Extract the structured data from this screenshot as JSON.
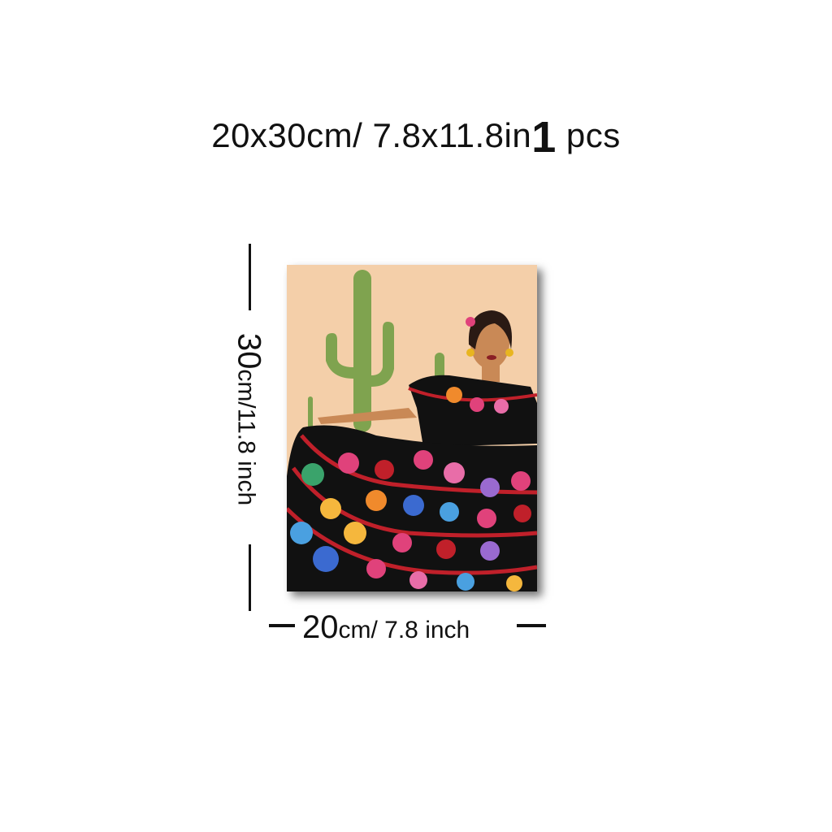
{
  "heading": {
    "size_text": "20x30cm/ 7.8x11.8in",
    "qty_number": "1",
    "qty_unit": "pcs"
  },
  "height_label": {
    "value": "30",
    "unit": "cm/11.8 inch"
  },
  "width_label": {
    "value": "20",
    "unit": "cm/ 7.8 inch"
  },
  "artwork": {
    "subject": "woman-in-floral-dress-with-cactus",
    "colors": {
      "background": "#f4cfa9",
      "cactus": "#7fa34f",
      "dress": "#111111",
      "trim": "#c0202a"
    }
  }
}
